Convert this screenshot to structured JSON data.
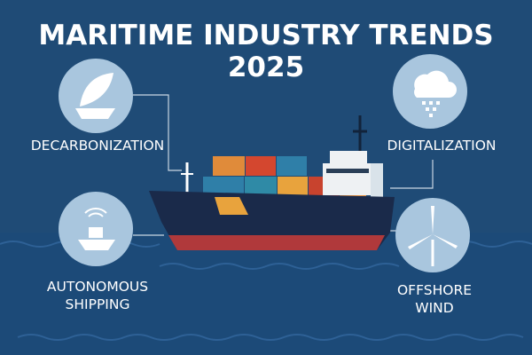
{
  "header": {
    "title_lines": [
      "MARITIME INDUSTRY TRENDS",
      "2025"
    ]
  },
  "nodes": [
    {
      "label_lines": [
        "DECARBONIZATION"
      ]
    },
    {
      "label_lines": [
        "DIGITALIZATION"
      ]
    },
    {
      "label_lines": [
        "AUTONOMOUS",
        "SHIPPING"
      ]
    },
    {
      "label_lines": [
        "OFFSHORE",
        "WIND"
      ]
    }
  ]
}
